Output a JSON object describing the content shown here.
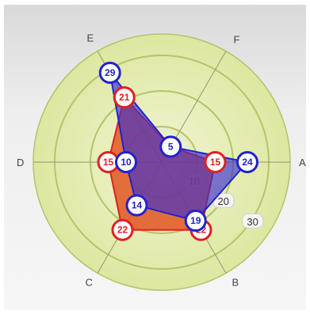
{
  "chart_data": {
    "type": "radar",
    "axes": [
      "A",
      "B",
      "C",
      "D",
      "E",
      "F"
    ],
    "radial_ticks": [
      10,
      20,
      30
    ],
    "rmax": 36,
    "series": [
      {
        "values": [
          15,
          22,
          22,
          15,
          21,
          5
        ],
        "labels": [
          "15",
          "22",
          "22",
          "15",
          "21",
          "5"
        ]
      },
      {
        "values": [
          24,
          19,
          14,
          10,
          29,
          5
        ],
        "labels": [
          "24",
          "19",
          "14",
          "10",
          "29",
          "5"
        ]
      }
    ],
    "colors": {
      "series1_stroke": "#e02020",
      "series1_fill": "#e0501e",
      "series2_stroke": "#2222cc",
      "series2_fill": "#3b2fd0",
      "ring_fill": "#dde7a0",
      "ring_stroke": "#b4c46a"
    }
  }
}
